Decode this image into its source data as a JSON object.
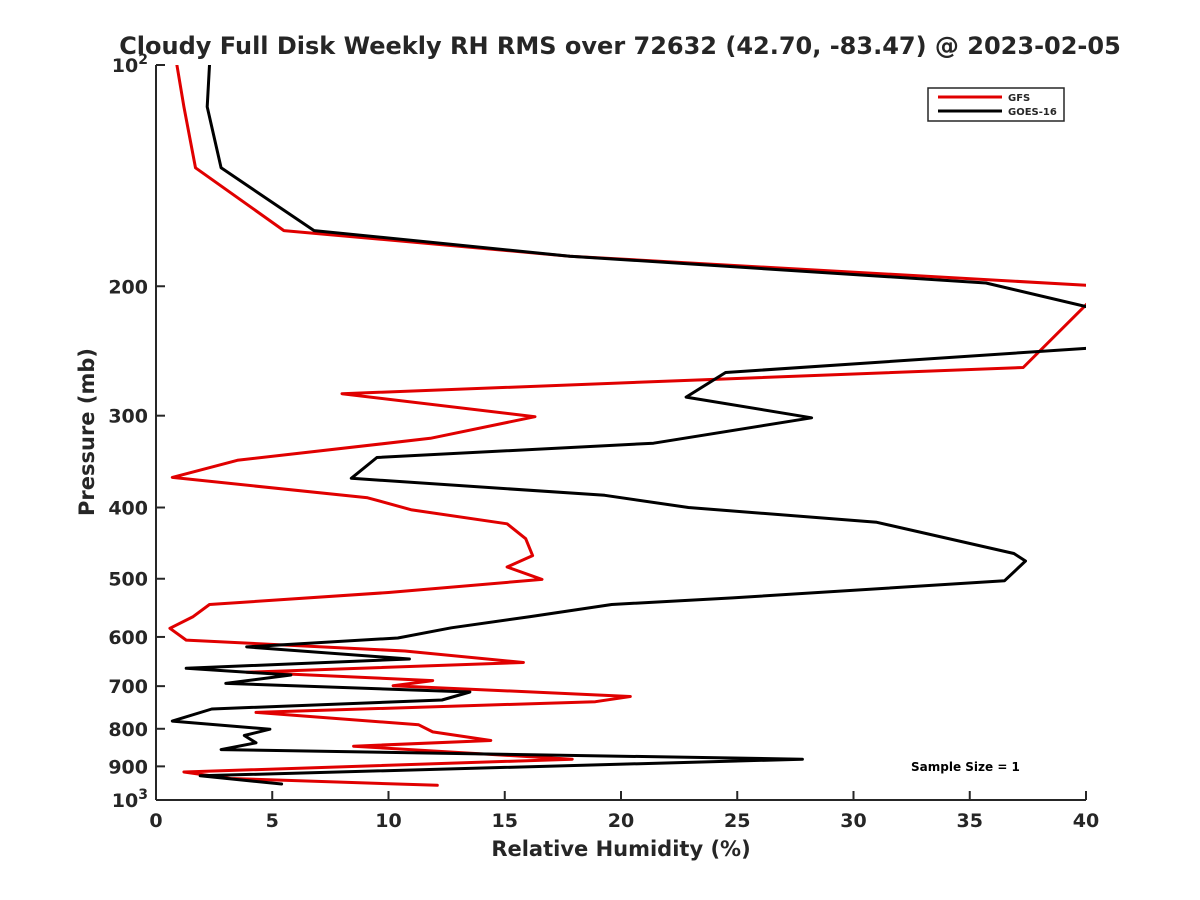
{
  "chart_data": {
    "type": "line",
    "title": "Cloudy Full Disk Weekly RH RMS over 72632 (42.70, -83.47) @ 2023-02-05",
    "xlabel": "Relative Humidity (%)",
    "ylabel": "Pressure (mb)",
    "xlim": [
      0,
      40
    ],
    "ylim": [
      100,
      1000
    ],
    "yscale": "log",
    "y_reversed": true,
    "xticks": [
      "0",
      "5",
      "10",
      "15",
      "20",
      "25",
      "30",
      "35",
      "40"
    ],
    "yticks": [
      {
        "value": 100,
        "base": "10",
        "exp": "2"
      },
      {
        "value": 200,
        "label": "200"
      },
      {
        "value": 300,
        "label": "300"
      },
      {
        "value": 400,
        "label": "400"
      },
      {
        "value": 500,
        "label": "500"
      },
      {
        "value": 600,
        "label": "600"
      },
      {
        "value": 700,
        "label": "700"
      },
      {
        "value": 800,
        "label": "800"
      },
      {
        "value": 900,
        "label": "900"
      },
      {
        "value": 1000,
        "base": "10",
        "exp": "3"
      }
    ],
    "grid": false,
    "legend_position": "top-right",
    "annotation": "Sample Size = 1",
    "series": [
      {
        "name": "GFS",
        "color": "#e00000",
        "x": [
          0.9,
          1.2,
          1.7,
          5.5,
          17.8,
          40.8,
          37.3,
          8.0,
          16.3,
          11.8,
          3.5,
          0.7,
          9.1,
          11.0,
          15.1,
          15.9,
          16.2,
          15.1,
          16.6,
          10.0,
          2.3,
          1.6,
          0.6,
          1.3,
          10.7,
          15.8,
          3.9,
          11.9,
          10.2,
          20.4,
          18.9,
          4.3,
          11.3,
          11.9,
          14.4,
          8.5,
          17.9,
          1.2,
          3.2,
          12.1
        ],
        "y": [
          100,
          114,
          138,
          168,
          182,
          200,
          258,
          280,
          301,
          322,
          345,
          364,
          388,
          403,
          421,
          441,
          465,
          482,
          501,
          522,
          542,
          563,
          584,
          606,
          627,
          650,
          670,
          688,
          699,
          723,
          735,
          760,
          790,
          808,
          830,
          845,
          880,
          916,
          935,
          955
        ]
      },
      {
        "name": "GOES-16",
        "color": "#000000",
        "x": [
          2.3,
          2.2,
          2.8,
          6.8,
          17.8,
          35.7,
          40.5,
          40.8,
          24.5,
          22.8,
          28.2,
          21.4,
          9.5,
          8.4,
          19.3,
          22.9,
          31.0,
          36.9,
          37.4,
          36.5,
          24.8,
          19.6,
          16.1,
          12.7,
          10.4,
          3.9,
          10.9,
          1.3,
          5.8,
          3.0,
          13.5,
          12.3,
          2.4,
          0.7,
          4.9,
          3.8,
          4.3,
          2.8,
          27.8,
          1.9,
          5.4
        ],
        "y": [
          100,
          114,
          138,
          168,
          182,
          198,
          215,
          242,
          262,
          283,
          302,
          327,
          342,
          365,
          385,
          400,
          419,
          462,
          473,
          503,
          531,
          542,
          563,
          583,
          602,
          619,
          643,
          662,
          676,
          694,
          713,
          731,
          752,
          781,
          801,
          817,
          836,
          854,
          880,
          927,
          951
        ]
      }
    ]
  }
}
